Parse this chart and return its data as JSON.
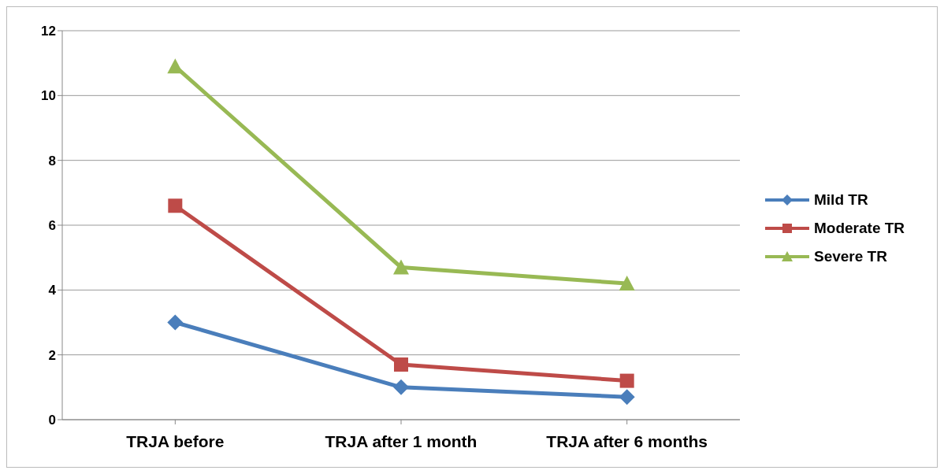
{
  "chart_data": {
    "type": "line",
    "categories": [
      "TRJA before",
      "TRJA after 1 month",
      "TRJA after 6 months"
    ],
    "series": [
      {
        "name": "Mild TR",
        "color": "#4a7ebb",
        "marker": "diamond",
        "values": [
          3.0,
          1.0,
          0.7
        ]
      },
      {
        "name": "Moderate TR",
        "color": "#be4b48",
        "marker": "square",
        "values": [
          6.6,
          1.7,
          1.2
        ]
      },
      {
        "name": "Severe TR",
        "color": "#98b954",
        "marker": "triangle",
        "values": [
          10.9,
          4.7,
          4.2
        ]
      }
    ],
    "ylim": [
      0,
      12
    ],
    "yticks": [
      0,
      2,
      4,
      6,
      8,
      10,
      12
    ],
    "grid": "y",
    "legend": "right",
    "line_style": "solid"
  }
}
